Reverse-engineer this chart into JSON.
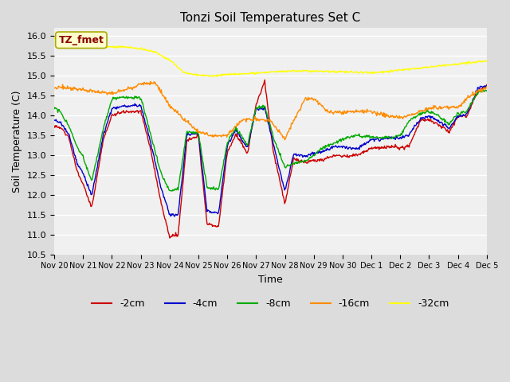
{
  "title": "Tonzi Soil Temperatures Set C",
  "xlabel": "Time",
  "ylabel": "Soil Temperature (C)",
  "ylim": [
    10.5,
    16.2
  ],
  "annotation_text": "TZ_fmet",
  "annotation_color": "#8B0000",
  "annotation_bg": "#FFFFCC",
  "annotation_border": "#AAAA00",
  "bg_color": "#DCDCDC",
  "plot_bg": "#F0F0F0",
  "grid_color": "#FFFFFF",
  "legend_entries": [
    "-2cm",
    "-4cm",
    "-8cm",
    "-16cm",
    "-32cm"
  ],
  "line_colors": [
    "#CC0000",
    "#0000CC",
    "#00AA00",
    "#FF8C00",
    "#FFFF00"
  ],
  "x_tick_labels": [
    "Nov 20",
    "Nov 21",
    "Nov 22",
    "Nov 23",
    "Nov 24",
    "Nov 25",
    "Nov 26",
    "Nov 27",
    "Nov 28",
    "Nov 29",
    "Nov 30",
    "Dec 1",
    "Dec 2",
    "Dec 3",
    "Dec 4",
    "Dec 5"
  ],
  "yticks": [
    10.5,
    11.0,
    11.5,
    12.0,
    12.5,
    13.0,
    13.5,
    14.0,
    14.5,
    15.0,
    15.5,
    16.0
  ]
}
